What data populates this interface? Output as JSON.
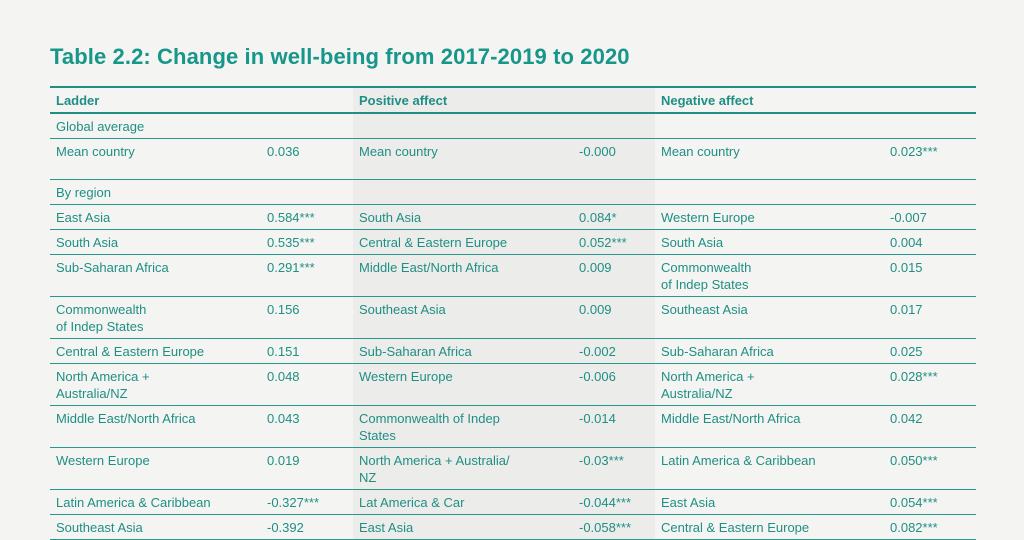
{
  "title": "Table 2.2: Change in well-being from 2017-2019 to 2020",
  "headers": [
    "Ladder",
    "Positive affect",
    "Negative affect"
  ],
  "global_label": "Global average",
  "mean": [
    {
      "label": "Mean country",
      "value": "0.036"
    },
    {
      "label": "Mean country",
      "value": "-0.000"
    },
    {
      "label": "Mean country",
      "value": "0.023***"
    }
  ],
  "region_label": "By region",
  "rows": [
    [
      [
        "East Asia",
        "0.584***"
      ],
      [
        "South Asia",
        "0.084*"
      ],
      [
        "Western Europe",
        "-0.007"
      ]
    ],
    [
      [
        "South Asia",
        "0.535***"
      ],
      [
        "Central & Eastern Europe",
        "0.052***"
      ],
      [
        "South Asia",
        "0.004"
      ]
    ],
    [
      [
        "Sub-Saharan Africa",
        "0.291***"
      ],
      [
        "Middle East/North Africa",
        "0.009"
      ],
      [
        "Commonwealth\nof Indep States",
        "0.015"
      ]
    ],
    [
      [
        "Commonwealth\nof Indep States",
        "0.156"
      ],
      [
        "Southeast Asia",
        "0.009"
      ],
      [
        "Southeast Asia",
        "0.017"
      ]
    ],
    [
      [
        "Central & Eastern Europe",
        "0.151"
      ],
      [
        "Sub-Saharan Africa",
        "-0.002"
      ],
      [
        "Sub-Saharan Africa",
        "0.025"
      ]
    ],
    [
      [
        "North America +\nAustralia/NZ",
        "0.048"
      ],
      [
        "Western Europe",
        "-0.006"
      ],
      [
        "North America +\nAustralia/NZ",
        "0.028***"
      ]
    ],
    [
      [
        "Middle East/North Africa",
        "0.043"
      ],
      [
        "Commonwealth of Indep\nStates",
        "-0.014"
      ],
      [
        "Middle East/North Africa",
        "0.042"
      ]
    ],
    [
      [
        "Western Europe",
        "0.019"
      ],
      [
        "North America + Australia/\nNZ",
        "-0.03***"
      ],
      [
        "Latin America & Caribbean",
        "0.050***"
      ]
    ],
    [
      [
        "Latin America & Caribbean",
        "-0.327***"
      ],
      [
        "Lat America & Car",
        "-0.044***"
      ],
      [
        "East Asia",
        "0.054***"
      ]
    ],
    [
      [
        "Southeast Asia",
        "-0.392"
      ],
      [
        "East Asia",
        "-0.058***"
      ],
      [
        "Central & Eastern Europe",
        "0.082***"
      ]
    ]
  ]
}
